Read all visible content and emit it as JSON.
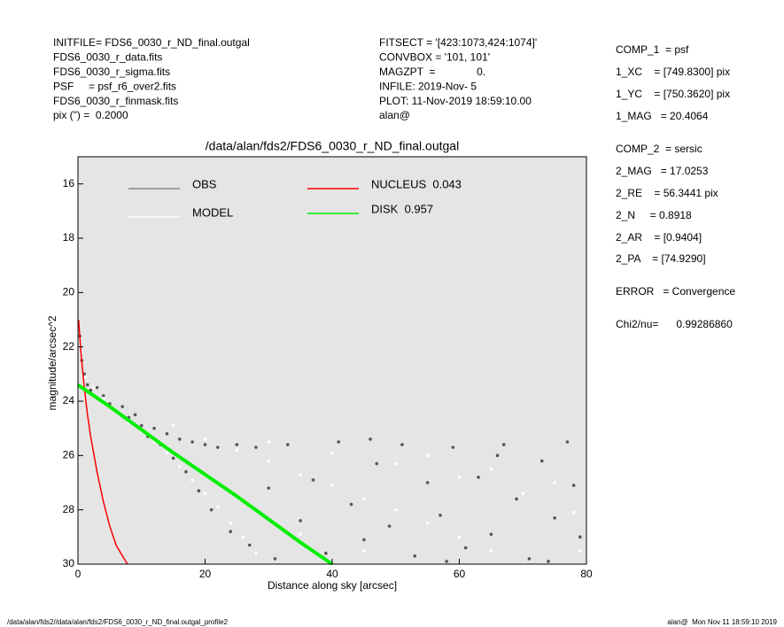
{
  "chart_data": {
    "type": "scatter",
    "title": "/data/alan/fds2/FDS6_0030_r_ND_final.outgal",
    "xlabel": "Distance along sky [arcsec]",
    "ylabel": "magnitude/arcsec^2",
    "xlim": [
      0,
      80
    ],
    "xticks": [
      0,
      20,
      40,
      60,
      80
    ],
    "ylim": [
      30,
      15
    ],
    "yticks": [
      16,
      18,
      20,
      22,
      24,
      26,
      28,
      30
    ],
    "info_left": [
      "INITFILE= FDS6_0030_r_ND_final.outgal",
      "FDS6_0030_r_data.fits",
      "FDS6_0030_r_sigma.fits",
      "PSF     = psf_r6_over2.fits",
      "FDS6_0030_r_finmask.fits",
      "pix (\") =  0.2000"
    ],
    "info_mid": [
      "FITSECT = '[423:1073,424:1074]'",
      "CONVBOX = '101, 101'",
      "MAGZPT  =              0.",
      "INFILE: 2019-Nov- 5",
      "PLOT: 11-Nov-2019 18:59:10.00",
      "alan@"
    ],
    "info_right": [
      "COMP_1  = psf",
      "1_XC    = [749.8300] pix",
      "1_YC    = [750.3620] pix",
      "1_MAG   = 20.4064",
      "COMP_2  = sersic",
      "2_MAG   = 17.0253",
      "2_RE    = 56.3441 pix",
      "2_N     = 0.8918",
      "2_AR    = [0.9404]",
      "2_PA    = [74.9290]",
      "ERROR   = Convergence",
      "Chi2/nu=      0.99286860"
    ],
    "footer_left": "/data/alan/fds2//data/alan/fds2/FDS6_0030_r_ND_final.outgal_profile2",
    "footer_right": "alan@  Mon Nov 11 18:59:10 2019",
    "series": [
      {
        "name": "OBS",
        "color": "#555555",
        "kind": "points",
        "x": [
          0.3,
          0.6,
          1,
          1.5,
          2,
          3,
          4,
          5,
          6,
          7,
          8,
          9,
          10,
          11,
          12,
          13,
          14,
          15,
          16,
          17,
          18,
          19,
          20,
          21,
          22,
          24,
          25,
          27,
          28,
          30,
          31,
          33,
          35,
          37,
          39,
          41,
          43,
          45,
          47,
          49,
          51,
          53,
          55,
          57,
          59,
          61,
          63,
          65,
          67,
          69,
          71,
          73,
          75,
          77,
          79,
          78,
          74,
          66,
          58,
          46
        ],
        "values": [
          21.6,
          22.5,
          23.0,
          23.4,
          23.6,
          23.5,
          23.8,
          24.1,
          24.3,
          24.2,
          24.6,
          24.5,
          24.9,
          25.3,
          25.0,
          25.6,
          25.2,
          26.1,
          25.4,
          26.6,
          25.5,
          27.3,
          25.6,
          28.0,
          25.7,
          28.8,
          25.6,
          29.3,
          25.7,
          27.2,
          29.8,
          25.6,
          28.4,
          26.9,
          29.6,
          25.5,
          27.8,
          29.1,
          26.3,
          28.6,
          25.6,
          29.7,
          27.0,
          28.2,
          25.7,
          29.4,
          26.8,
          28.9,
          25.6,
          27.6,
          29.8,
          26.2,
          28.3,
          25.5,
          29.0,
          27.1,
          29.9,
          26.0,
          29.9,
          25.4
        ]
      },
      {
        "name": "MODEL",
        "color": "#ffffff",
        "kind": "points",
        "x": [
          0.5,
          1.2,
          2.5,
          4,
          6,
          8,
          10,
          12,
          14,
          16,
          18,
          20,
          22,
          24,
          26,
          28,
          15,
          20,
          25,
          30,
          35,
          40,
          45,
          50,
          55,
          60,
          65,
          70,
          30,
          40,
          50,
          60,
          70,
          78,
          35,
          45,
          55,
          65,
          75,
          79
        ],
        "values": [
          22.2,
          23.1,
          23.5,
          23.9,
          24.3,
          24.8,
          25.1,
          25.5,
          25.9,
          26.4,
          26.9,
          27.4,
          27.9,
          28.5,
          29.0,
          29.6,
          24.9,
          25.4,
          25.8,
          26.2,
          26.7,
          27.1,
          27.6,
          28.0,
          28.5,
          29.0,
          29.5,
          30.0,
          25.5,
          25.9,
          26.3,
          26.8,
          27.4,
          28.1,
          28.9,
          29.5,
          26.0,
          26.5,
          27.0,
          29.5
        ]
      },
      {
        "name": "NUCLEUS  0.043",
        "color": "#ff0000",
        "kind": "line",
        "x": [
          0.1,
          0.5,
          1,
          1.5,
          2,
          3,
          4,
          5,
          6,
          7,
          7.8
        ],
        "values": [
          21.0,
          22.3,
          23.5,
          24.5,
          25.3,
          26.6,
          27.7,
          28.6,
          29.3,
          29.7,
          30.0
        ]
      },
      {
        "name": "DISK  0.957",
        "color": "#00ee00",
        "kind": "line",
        "x": [
          0,
          5,
          10,
          15,
          20,
          25,
          30,
          35,
          40
        ],
        "values": [
          23.4,
          24.2,
          25.05,
          25.9,
          26.7,
          27.5,
          28.35,
          29.2,
          30.0
        ]
      }
    ]
  }
}
